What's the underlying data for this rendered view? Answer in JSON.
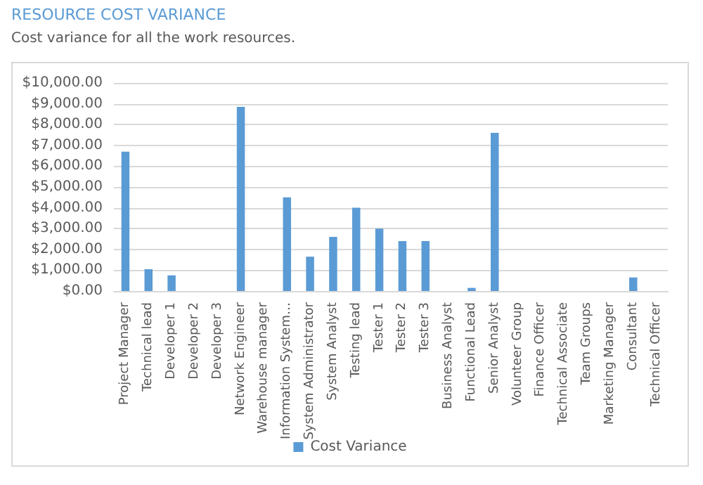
{
  "chart_data": {
    "type": "bar",
    "title": "RESOURCE COST VARIANCE",
    "subtitle": "Cost variance for all the work resources.",
    "categories": [
      "Project Manager",
      "Technical lead",
      "Developer 1",
      "Developer 2",
      "Developer 3",
      "Network Engineer",
      "Warehouse manager",
      "Information System…",
      "System Administrator",
      "System Analyst",
      "Testing lead",
      "Tester 1",
      "Tester 2",
      "Tester 3",
      "Business Analyst",
      "Functional Lead",
      "Senior Analyst",
      "Volunteer Group",
      "Finance Officer",
      "Technical Associate",
      "Team Groups",
      "Marketing Manager",
      "Consultant",
      "Technical Officer"
    ],
    "series": [
      {
        "name": "Cost Variance",
        "color": "#5b9bd5",
        "values": [
          6700,
          1050,
          750,
          0,
          0,
          8850,
          0,
          4500,
          1650,
          2600,
          4000,
          3000,
          2400,
          2400,
          0,
          150,
          7600,
          0,
          0,
          0,
          0,
          0,
          650,
          0
        ]
      }
    ],
    "ylim": [
      0,
      10000
    ],
    "yticks": [
      {
        "value": 0,
        "label": "$0.00"
      },
      {
        "value": 1000,
        "label": "$1,000.00"
      },
      {
        "value": 2000,
        "label": "$2,000.00"
      },
      {
        "value": 3000,
        "label": "$3,000.00"
      },
      {
        "value": 4000,
        "label": "$4,000.00"
      },
      {
        "value": 5000,
        "label": "$5,000.00"
      },
      {
        "value": 6000,
        "label": "$6,000.00"
      },
      {
        "value": 7000,
        "label": "$7,000.00"
      },
      {
        "value": 8000,
        "label": "$8,000.00"
      },
      {
        "value": 9000,
        "label": "$9,000.00"
      },
      {
        "value": 10000,
        "label": "$10,000.00"
      }
    ],
    "grid": "y",
    "legend": "bottom"
  }
}
